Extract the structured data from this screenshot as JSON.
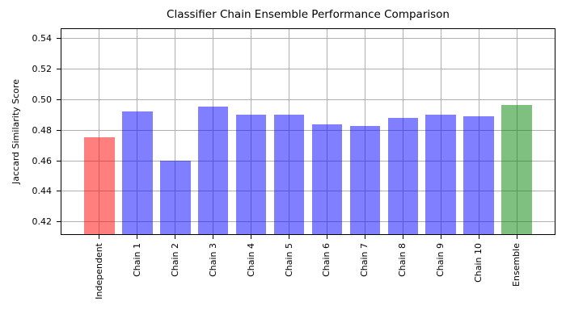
{
  "chart_data": {
    "type": "bar",
    "title": "Classifier Chain Ensemble Performance Comparison",
    "xlabel": "",
    "ylabel": "Jaccard Similarity Score",
    "categories": [
      "Independent",
      "Chain 1",
      "Chain 2",
      "Chain 3",
      "Chain 4",
      "Chain 5",
      "Chain 6",
      "Chain 7",
      "Chain 8",
      "Chain 9",
      "Chain 10",
      "Ensemble"
    ],
    "values": [
      0.4755,
      0.492,
      0.4598,
      0.4953,
      0.4901,
      0.4901,
      0.4836,
      0.4829,
      0.488,
      0.4901,
      0.489,
      0.4962
    ],
    "bar_colors": [
      "#ff0000",
      "#0000ff",
      "#0000ff",
      "#0000ff",
      "#0000ff",
      "#0000ff",
      "#0000ff",
      "#0000ff",
      "#0000ff",
      "#0000ff",
      "#0000ff",
      "#008000"
    ],
    "bar_alpha": 0.5,
    "ylim": [
      0.412,
      0.546
    ],
    "xlim": [
      -1,
      12
    ],
    "yticks": [
      0.42,
      0.44,
      0.46,
      0.48,
      0.5,
      0.52,
      0.54
    ],
    "ytick_format_decimals": 2,
    "x_tick_rotation": 90,
    "bar_width_fraction": 0.8,
    "grid": true,
    "grid_color": "#b0b0b0",
    "spine_color": "#000000",
    "legend": false
  }
}
